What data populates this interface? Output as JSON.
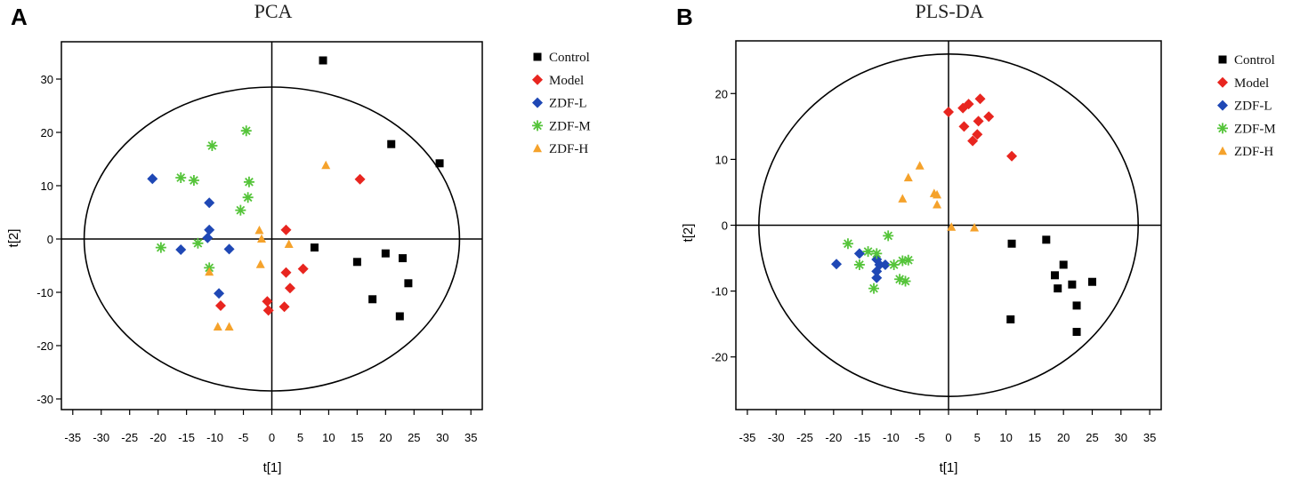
{
  "chart_data": [
    {
      "panel_label": "A",
      "type": "scatter",
      "title": "PCA",
      "xlabel": "t[1]",
      "ylabel": "t[2]",
      "xlim": [
        -37,
        37
      ],
      "ylim": [
        -32,
        37
      ],
      "xticks": [
        -35,
        -30,
        -25,
        -20,
        -15,
        -10,
        -5,
        0,
        5,
        10,
        15,
        20,
        25,
        30,
        35
      ],
      "yticks": [
        -30,
        -20,
        -10,
        0,
        10,
        20,
        30
      ],
      "legend_position": "right",
      "ellipse": {
        "cx": 0,
        "cy": 0,
        "rx": 33,
        "ry": 28.5
      },
      "series": [
        {
          "name": "Control",
          "marker": "square",
          "color": "#000000",
          "points": [
            [
              9,
              33.5
            ],
            [
              21,
              17.8
            ],
            [
              29.5,
              14.2
            ],
            [
              7.5,
              -1.6
            ],
            [
              15,
              -4.3
            ],
            [
              20,
              -2.7
            ],
            [
              23,
              -3.6
            ],
            [
              24,
              -8.3
            ],
            [
              17.7,
              -11.3
            ],
            [
              22.5,
              -14.5
            ]
          ]
        },
        {
          "name": "Model",
          "marker": "diamond",
          "color": "#e8251f",
          "points": [
            [
              15.5,
              11.2
            ],
            [
              2.5,
              1.7
            ],
            [
              2.5,
              -6.3
            ],
            [
              5.5,
              -5.6
            ],
            [
              3.2,
              -9.2
            ],
            [
              2.2,
              -12.7
            ],
            [
              -0.8,
              -11.7
            ],
            [
              -0.6,
              -13.4
            ],
            [
              -9,
              -12.5
            ]
          ]
        },
        {
          "name": "ZDF-L",
          "marker": "diamond",
          "color": "#1f48b5",
          "points": [
            [
              -21,
              11.3
            ],
            [
              -11,
              6.8
            ],
            [
              -11,
              1.7
            ],
            [
              -11.3,
              0.2
            ],
            [
              -7.5,
              -1.9
            ],
            [
              -16,
              -2
            ],
            [
              -9.3,
              -10.2
            ]
          ]
        },
        {
          "name": "ZDF-M",
          "marker": "asterisk",
          "color": "#55c43a",
          "points": [
            [
              -16,
              11.5
            ],
            [
              -10.5,
              17.5
            ],
            [
              -4.5,
              20.3
            ],
            [
              -4,
              10.7
            ],
            [
              -4.2,
              7.8
            ],
            [
              -5.5,
              5.4
            ],
            [
              -13.7,
              11
            ],
            [
              -13,
              -0.8
            ],
            [
              -19.5,
              -1.6
            ],
            [
              -11,
              -5.4
            ]
          ]
        },
        {
          "name": "ZDF-H",
          "marker": "triangle",
          "color": "#f5a22b",
          "points": [
            [
              9.5,
              13.8
            ],
            [
              -2.2,
              1.6
            ],
            [
              -1.8,
              0
            ],
            [
              3,
              -1
            ],
            [
              -2,
              -4.8
            ],
            [
              -11,
              -6.2
            ],
            [
              -9.5,
              -16.5
            ],
            [
              -7.5,
              -16.5
            ]
          ]
        }
      ]
    },
    {
      "panel_label": "B",
      "type": "scatter",
      "title": "PLS-DA",
      "xlabel": "t[1]",
      "ylabel": "t[2]",
      "xlim": [
        -37,
        37
      ],
      "ylim": [
        -28,
        28
      ],
      "xticks": [
        -35,
        -30,
        -25,
        -20,
        -15,
        -10,
        -5,
        0,
        5,
        10,
        15,
        20,
        25,
        30,
        35
      ],
      "yticks": [
        -20,
        -10,
        0,
        10,
        20
      ],
      "legend_position": "right",
      "ellipse": {
        "cx": 0,
        "cy": 0,
        "rx": 33,
        "ry": 26
      },
      "series": [
        {
          "name": "Control",
          "marker": "square",
          "color": "#000000",
          "points": [
            [
              11,
              -2.8
            ],
            [
              17,
              -2.2
            ],
            [
              20,
              -6
            ],
            [
              18.5,
              -7.6
            ],
            [
              19,
              -9.6
            ],
            [
              21.5,
              -9
            ],
            [
              25,
              -8.6
            ],
            [
              22.3,
              -12.2
            ],
            [
              10.8,
              -14.3
            ],
            [
              22.3,
              -16.2
            ]
          ]
        },
        {
          "name": "Model",
          "marker": "diamond",
          "color": "#e8251f",
          "points": [
            [
              0,
              17.2
            ],
            [
              2.5,
              17.8
            ],
            [
              3.5,
              18.4
            ],
            [
              5.5,
              19.2
            ],
            [
              2.7,
              15
            ],
            [
              4.2,
              12.8
            ],
            [
              5,
              13.8
            ],
            [
              5.2,
              15.8
            ],
            [
              7,
              16.5
            ],
            [
              11,
              10.5
            ]
          ]
        },
        {
          "name": "ZDF-L",
          "marker": "diamond",
          "color": "#1f48b5",
          "points": [
            [
              -19.5,
              -5.9
            ],
            [
              -15.5,
              -4.3
            ],
            [
              -12.5,
              -5.2
            ],
            [
              -12,
              -6
            ],
            [
              -11,
              -6
            ],
            [
              -12.5,
              -7
            ],
            [
              -12.5,
              -8
            ]
          ]
        },
        {
          "name": "ZDF-M",
          "marker": "asterisk",
          "color": "#55c43a",
          "points": [
            [
              -17.5,
              -2.8
            ],
            [
              -14,
              -4
            ],
            [
              -10.5,
              -1.6
            ],
            [
              -8,
              -5.4
            ],
            [
              -7,
              -5.3
            ],
            [
              -9.5,
              -6
            ],
            [
              -15.5,
              -6
            ],
            [
              -12.5,
              -4.3
            ],
            [
              -8.5,
              -8.2
            ],
            [
              -7.5,
              -8.5
            ],
            [
              -13,
              -9.6
            ]
          ]
        },
        {
          "name": "ZDF-H",
          "marker": "triangle",
          "color": "#f5a22b",
          "points": [
            [
              -5,
              9
            ],
            [
              -7,
              7.2
            ],
            [
              -8,
              4
            ],
            [
              -2.5,
              4.8
            ],
            [
              -2,
              4.6
            ],
            [
              -2,
              3.1
            ],
            [
              0.5,
              -0.3
            ],
            [
              4.5,
              -0.4
            ]
          ]
        }
      ]
    }
  ]
}
